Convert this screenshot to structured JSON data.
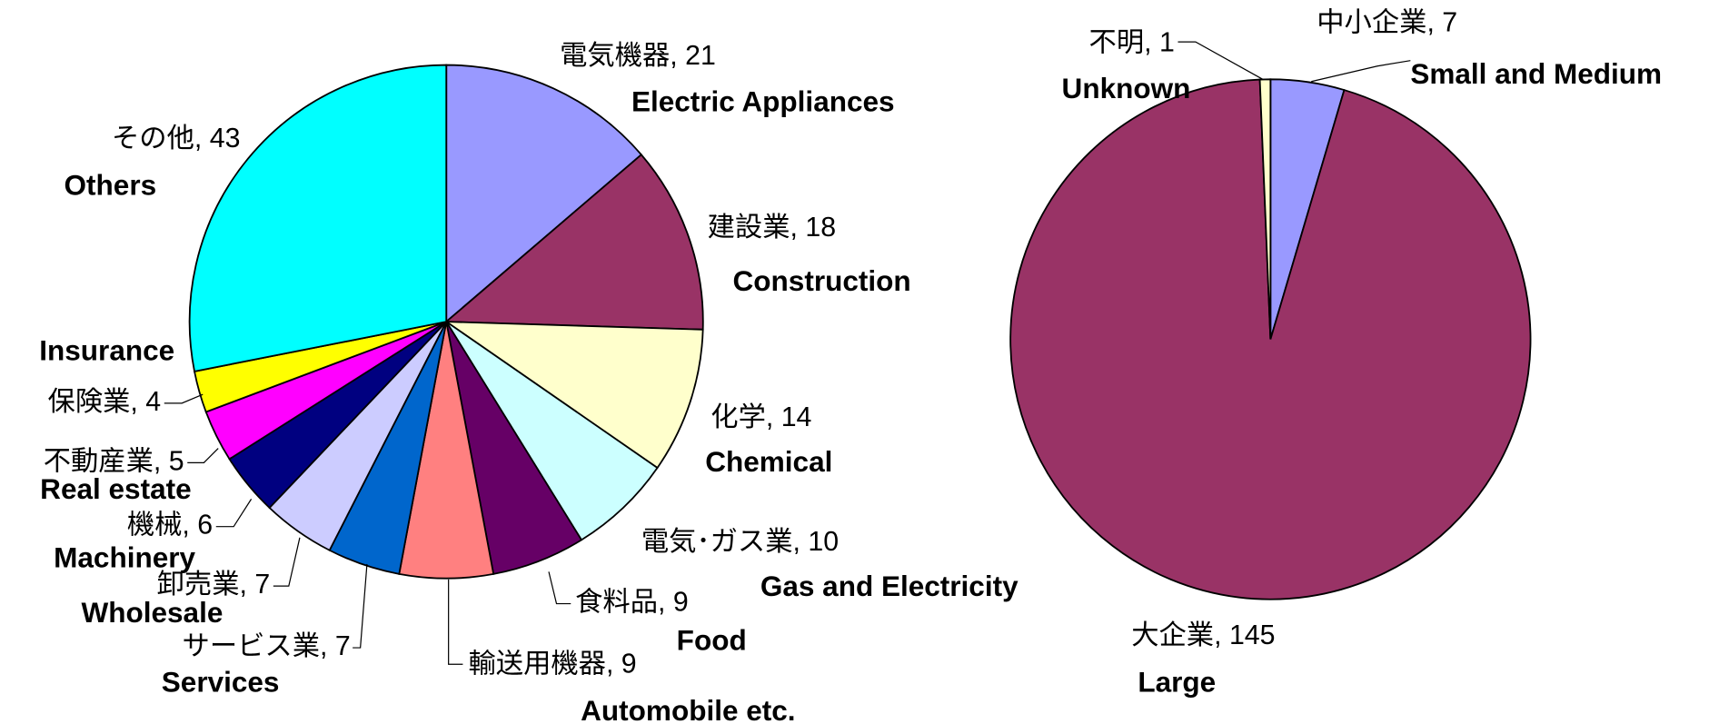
{
  "chart_data": [
    {
      "type": "pie",
      "categories": [
        "Electric Appliances",
        "Construction",
        "Chemical",
        "Gas and Electricity",
        "Food",
        "Automobile etc.",
        "Services",
        "Wholesale",
        "Machinery",
        "Real estate",
        "Insurance",
        "Others"
      ],
      "values": [
        21,
        18,
        14,
        10,
        9,
        9,
        7,
        7,
        6,
        5,
        4,
        43
      ],
      "value_labels": [
        "電気機器, 21",
        "建設業, 18",
        "化学, 14",
        "電気･ガス業, 10",
        "食料品, 9",
        "輸送用機器, 9",
        "サービス業, 7",
        "卸売業, 7",
        "機械, 6",
        "不動産業, 5",
        "保険業, 4",
        "その他, 43"
      ],
      "colors": [
        "#9999ff",
        "#993366",
        "#ffffcc",
        "#ccffff",
        "#660066",
        "#ff8080",
        "#0066cc",
        "#ccccff",
        "#000080",
        "#ff00ff",
        "#ffff00",
        "#00ffff"
      ]
    },
    {
      "type": "pie",
      "categories": [
        "Small and Medium",
        "Large",
        "Unknown"
      ],
      "values": [
        7,
        145,
        1
      ],
      "value_labels": [
        "中小企業, 7",
        "大企業, 145",
        "不明, 1"
      ],
      "colors": [
        "#9999ff",
        "#993366",
        "#ffffcc"
      ]
    }
  ]
}
